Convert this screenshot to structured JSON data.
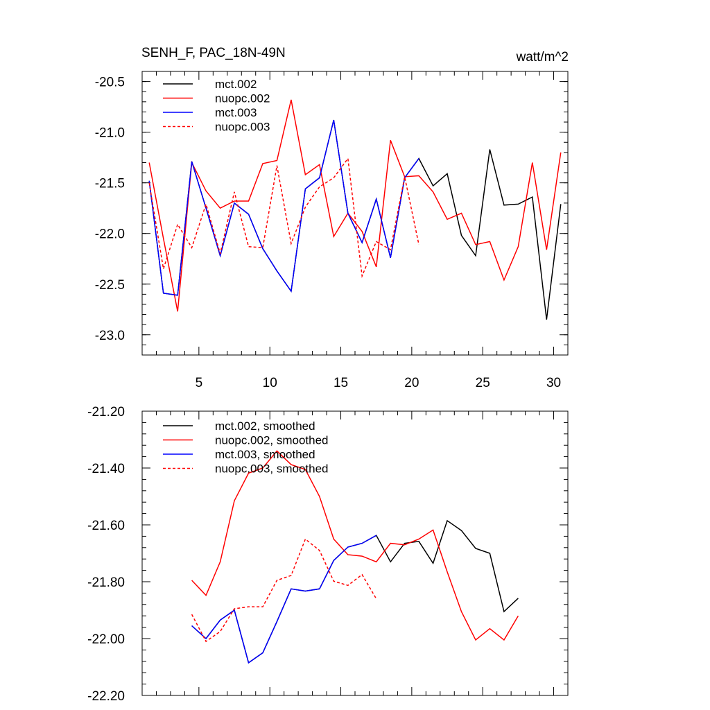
{
  "figure": {
    "title": "SENH_F, PAC_18N-49N",
    "units": "watt/m^2"
  },
  "chart_data": [
    {
      "type": "line",
      "title": "SENH_F, PAC_18N-49N",
      "units_label": "watt/m^2",
      "xlim": [
        1,
        31
      ],
      "ylim": [
        -23.2,
        -20.4
      ],
      "x_ticks": [
        5,
        10,
        15,
        20,
        25,
        30
      ],
      "y_ticks": [
        -20.5,
        -21.0,
        -21.5,
        -22.0,
        -22.5,
        -23.0
      ],
      "y_tick_labels": [
        "-20.5",
        "-21.0",
        "-21.5",
        "-22.0",
        "-22.5",
        "-23.0"
      ],
      "legend_position": "top-left",
      "series": [
        {
          "name": "mct.002",
          "color": "#000000",
          "dash": "solid",
          "x": [
            1.5,
            2.5,
            3.5,
            4.5,
            5.5,
            6.5,
            7.5,
            8.5,
            9.5,
            10.5,
            11.5,
            12.5,
            13.5,
            14.5,
            15.5,
            16.5,
            17.5,
            18.5,
            19.5,
            20.5,
            21.5,
            22.5,
            23.5,
            24.5,
            25.5,
            26.5,
            27.5,
            28.5,
            29.5,
            30.5
          ],
          "y": [
            -21.48,
            -22.59,
            -22.61,
            -21.29,
            -21.75,
            -22.22,
            -21.7,
            -21.81,
            -22.15,
            -22.37,
            -22.57,
            -21.56,
            -21.45,
            -20.88,
            -21.8,
            -22.09,
            -21.66,
            -22.24,
            -21.45,
            -21.26,
            -21.53,
            -21.41,
            -22.02,
            -22.22,
            -21.17,
            -21.72,
            -21.71,
            -21.64,
            -22.85,
            -21.71
          ]
        },
        {
          "name": "nuopc.002",
          "color": "#ff0000",
          "dash": "solid",
          "x": [
            1.5,
            2.5,
            3.5,
            4.5,
            5.5,
            6.5,
            7.5,
            8.5,
            9.5,
            10.5,
            11.5,
            12.5,
            13.5,
            14.5,
            15.5,
            16.5,
            17.5,
            18.5,
            19.5,
            20.5,
            21.5,
            22.5,
            23.5,
            24.5,
            25.5,
            26.5,
            27.5,
            28.5,
            29.5,
            30.5
          ],
          "y": [
            -21.3,
            -22.05,
            -22.77,
            -21.3,
            -21.58,
            -21.75,
            -21.68,
            -21.68,
            -21.31,
            -21.28,
            -20.68,
            -21.42,
            -21.32,
            -22.03,
            -21.8,
            -21.98,
            -22.33,
            -21.08,
            -21.44,
            -21.43,
            -21.59,
            -21.86,
            -21.8,
            -22.11,
            -22.08,
            -22.46,
            -22.13,
            -21.3,
            -22.16,
            -21.2
          ]
        },
        {
          "name": "mct.003",
          "color": "#0000ff",
          "dash": "solid",
          "x": [
            1.5,
            2.5,
            3.5,
            4.5,
            5.5,
            6.5,
            7.5,
            8.5,
            9.5,
            10.5,
            11.5,
            12.5,
            13.5,
            14.5,
            15.5,
            16.5,
            17.5,
            18.5,
            19.5,
            20.5
          ],
          "y": [
            -21.48,
            -22.59,
            -22.61,
            -21.29,
            -21.75,
            -22.22,
            -21.7,
            -21.81,
            -22.15,
            -22.37,
            -22.57,
            -21.56,
            -21.45,
            -20.88,
            -21.8,
            -22.09,
            -21.66,
            -22.24,
            -21.45,
            -21.26
          ]
        },
        {
          "name": "nuopc.003",
          "color": "#ff0000",
          "dash": "dashed",
          "x": [
            1.5,
            2.5,
            3.5,
            4.5,
            5.5,
            6.5,
            7.5,
            8.5,
            9.5,
            10.5,
            11.5,
            12.5,
            13.5,
            14.5,
            15.5,
            16.5,
            17.5,
            18.5,
            19.5,
            20.5
          ],
          "y": [
            -21.5,
            -22.35,
            -21.91,
            -22.14,
            -21.71,
            -22.2,
            -21.59,
            -22.13,
            -22.14,
            -21.33,
            -22.1,
            -21.74,
            -21.54,
            -21.45,
            -21.26,
            -22.42,
            -22.08,
            -22.16,
            -21.44,
            -22.11
          ]
        }
      ]
    },
    {
      "type": "line",
      "xlim": [
        1,
        31
      ],
      "ylim": [
        -22.2,
        -21.2
      ],
      "x_ticks": [
        5,
        10,
        15,
        20,
        25,
        30
      ],
      "y_ticks": [
        -21.2,
        -21.4,
        -21.6,
        -21.8,
        -22.0,
        -22.2
      ],
      "y_tick_labels": [
        "-21.20",
        "-21.40",
        "-21.60",
        "-21.80",
        "-22.00",
        "-22.20"
      ],
      "legend_position": "top-left",
      "series": [
        {
          "name": "mct.002, smoothed",
          "color": "#000000",
          "dash": "solid",
          "x": [
            4.5,
            5.5,
            6.5,
            7.5,
            8.5,
            9.5,
            10.5,
            11.5,
            12.5,
            13.5,
            14.5,
            15.5,
            16.5,
            17.5,
            18.5,
            19.5,
            20.5,
            21.5,
            22.5,
            23.5,
            24.5,
            25.5,
            26.5,
            27.5
          ],
          "y": [
            -21.955,
            -22.0,
            -21.935,
            -21.9,
            -22.085,
            -22.05,
            -21.94,
            -21.825,
            -21.833,
            -21.825,
            -21.725,
            -21.678,
            -21.665,
            -21.637,
            -21.73,
            -21.665,
            -21.658,
            -21.735,
            -21.585,
            -21.62,
            -21.683,
            -21.7,
            -21.905,
            -21.858
          ]
        },
        {
          "name": "nuopc.002, smoothed",
          "color": "#ff0000",
          "dash": "solid",
          "x": [
            4.5,
            5.5,
            6.5,
            7.5,
            8.5,
            9.5,
            10.5,
            11.5,
            12.5,
            13.5,
            14.5,
            15.5,
            16.5,
            17.5,
            18.5,
            19.5,
            20.5,
            21.5,
            22.5,
            23.5,
            24.5,
            25.5,
            26.5,
            27.5
          ],
          "y": [
            -21.795,
            -21.848,
            -21.73,
            -21.515,
            -21.418,
            -21.4,
            -21.34,
            -21.388,
            -21.405,
            -21.5,
            -21.65,
            -21.705,
            -21.71,
            -21.73,
            -21.665,
            -21.67,
            -21.65,
            -21.618,
            -21.765,
            -21.905,
            -22.005,
            -21.965,
            -22.005,
            -21.92
          ]
        },
        {
          "name": "mct.003, smoothed",
          "color": "#0000ff",
          "dash": "solid",
          "x": [
            4.5,
            5.5,
            6.5,
            7.5,
            8.5,
            9.5,
            10.5,
            11.5,
            12.5,
            13.5,
            14.5,
            15.5,
            16.5,
            17.5
          ],
          "y": [
            -21.955,
            -22.0,
            -21.935,
            -21.9,
            -22.085,
            -22.05,
            -21.94,
            -21.825,
            -21.833,
            -21.825,
            -21.725,
            -21.678,
            -21.665,
            -21.637
          ]
        },
        {
          "name": "nuopc.003, smoothed",
          "color": "#ff0000",
          "dash": "dashed",
          "x": [
            4.5,
            5.5,
            6.5,
            7.5,
            8.5,
            9.5,
            10.5,
            11.5,
            12.5,
            13.5,
            14.5,
            15.5,
            16.5,
            17.5
          ],
          "y": [
            -21.915,
            -22.01,
            -21.975,
            -21.895,
            -21.888,
            -21.888,
            -21.795,
            -21.778,
            -21.65,
            -21.69,
            -21.798,
            -21.813,
            -21.775,
            -21.86
          ]
        }
      ]
    }
  ]
}
